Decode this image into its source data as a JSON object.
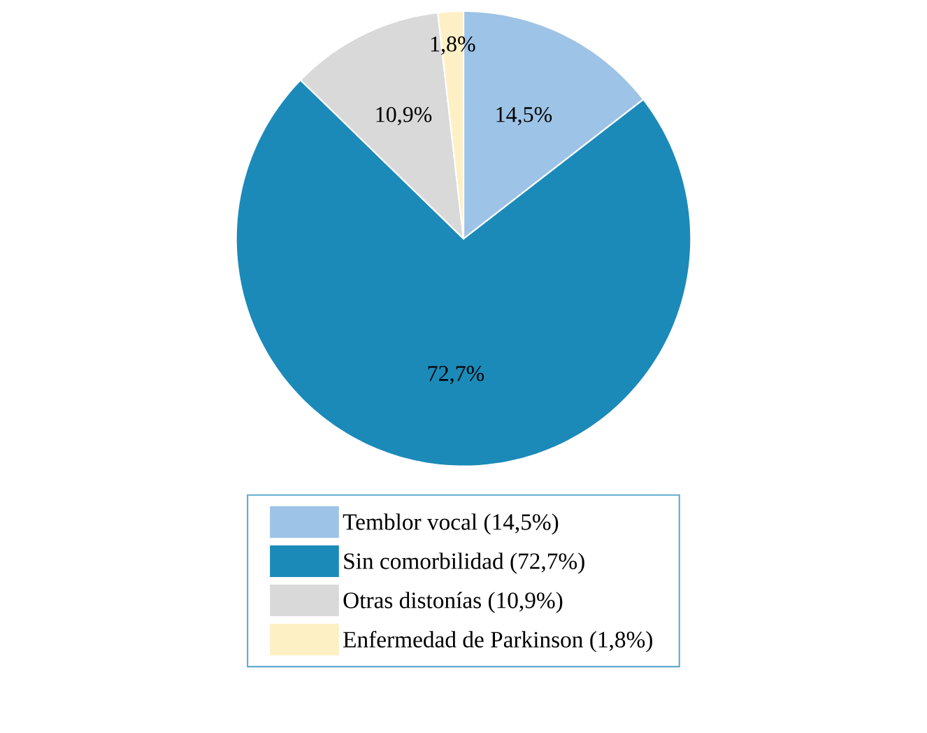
{
  "chart_data": {
    "type": "pie",
    "categories": [
      "Temblor vocal (14,5%)",
      "Sin comorbilidad (72,7%)",
      "Otras distonías (10,9%)",
      "Enfermedad de Parkinson (1,8%)"
    ],
    "values": [
      14.5,
      72.7,
      10.9,
      1.8
    ],
    "colors": [
      "#9dc3e6",
      "#1b8ab9",
      "#d9d9d9",
      "#fdf0c4"
    ],
    "value_labels": [
      "14,5%",
      "72,7%",
      "10,9%",
      "1,8%"
    ],
    "legend": "bottom"
  }
}
